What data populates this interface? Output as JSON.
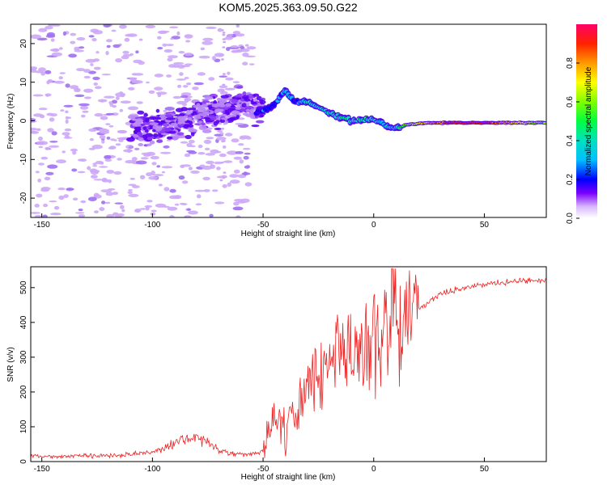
{
  "figure_title": "KOM5.2025.363.09.50.G22",
  "chart_data": [
    {
      "type": "heatmap",
      "title": "KOM5.2025.363.09.50.G22",
      "xlabel": "Height of straight line (km)",
      "ylabel": "Frequency (Hz)",
      "xlim": [
        -155,
        78
      ],
      "ylim": [
        -25,
        25
      ],
      "xticks": [
        -150,
        -100,
        -50,
        0,
        50
      ],
      "yticks": [
        -20,
        -10,
        0,
        10,
        20
      ],
      "ridge": {
        "x": [
          -52,
          -45,
          -40,
          -36,
          -30,
          -20,
          -10,
          0,
          5,
          10,
          15,
          25,
          40,
          55,
          78
        ],
        "y": [
          2,
          4,
          8,
          5,
          5,
          2,
          0,
          0.5,
          -1,
          -2,
          -1,
          -0.5,
          -0.5,
          -0.5,
          -0.5
        ],
        "amplitude": [
          0.25,
          0.3,
          0.35,
          0.3,
          0.4,
          0.45,
          0.5,
          0.45,
          0.35,
          0.4,
          0.6,
          0.85,
          1.0,
          0.9,
          0.6
        ]
      },
      "colorbar": {
        "label": "Normalized spectral amplitude",
        "range": [
          0,
          1
        ],
        "ticks": [
          0.0,
          0.2,
          0.4,
          0.6,
          0.8
        ]
      }
    },
    {
      "type": "line",
      "xlabel": "Height of straight line (km)",
      "ylabel": "SNR (v/v)",
      "xlim": [
        -155,
        78
      ],
      "ylim": [
        0,
        560
      ],
      "xticks": [
        -150,
        -100,
        -50,
        0,
        50
      ],
      "yticks": [
        0,
        100,
        200,
        300,
        400,
        500
      ],
      "color": "#ee2222",
      "series": [
        {
          "name": "SNR",
          "x": [
            -155,
            -140,
            -120,
            -100,
            -95,
            -85,
            -80,
            -75,
            -70,
            -60,
            -50,
            -47,
            -45,
            -40,
            -35,
            -30,
            -25,
            -20,
            -15,
            -10,
            -5,
            0,
            5,
            8,
            10,
            15,
            20,
            25,
            30,
            40,
            50,
            60,
            70,
            78
          ],
          "y": [
            15,
            15,
            18,
            25,
            40,
            65,
            75,
            55,
            30,
            20,
            25,
            100,
            120,
            90,
            140,
            200,
            260,
            280,
            300,
            320,
            330,
            360,
            380,
            400,
            430,
            420,
            440,
            460,
            480,
            500,
            510,
            515,
            520,
            520
          ]
        }
      ]
    }
  ],
  "colors": {
    "line": "#ee2222",
    "axes": "#000000",
    "scatter_low": "#c9a9f5",
    "scatter_mid": "#7a3cf0"
  }
}
